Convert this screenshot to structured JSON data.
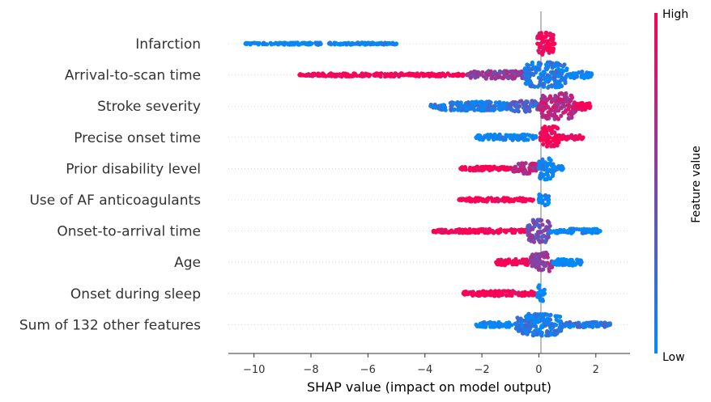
{
  "chart_data": {
    "type": "scatter",
    "subtype": "shap-beeswarm",
    "title": "",
    "xlabel": "SHAP value (impact on model output)",
    "xlim": [
      -10.9,
      3.2
    ],
    "xticks": [
      -10,
      -8,
      -6,
      -4,
      -2,
      0,
      2
    ],
    "xtick_labels": [
      "−10",
      "−8",
      "−6",
      "−4",
      "−2",
      "0",
      "2"
    ],
    "colors": {
      "low": "#008bfb",
      "high": "#ff0052",
      "zero_line": "#999999",
      "grid": "#cccccc"
    },
    "colorbar": {
      "title": "Feature value",
      "high_label": "High",
      "low_label": "Low"
    },
    "features": [
      {
        "name": "Infarction",
        "segments": [
          {
            "from": -10.3,
            "to": -5.0,
            "thickness": 0.08,
            "value": 0.0
          },
          {
            "from": -0.05,
            "to": 0.55,
            "thickness": 0.9,
            "value": 1.0
          }
        ]
      },
      {
        "name": "Arrival-to-scan time",
        "segments": [
          {
            "from": -8.4,
            "to": -2.5,
            "thickness": 0.12,
            "value": 1.0
          },
          {
            "from": -2.5,
            "to": -0.3,
            "thickness": 0.3,
            "value": 0.55
          },
          {
            "from": -0.5,
            "to": 1.0,
            "thickness": 1.0,
            "value": 0.1
          },
          {
            "from": 1.0,
            "to": 1.85,
            "thickness": 0.25,
            "value": 0.05
          }
        ]
      },
      {
        "name": "Stroke severity",
        "segments": [
          {
            "from": -3.8,
            "to": -1.0,
            "thickness": 0.35,
            "value": 0.1
          },
          {
            "from": -1.0,
            "to": 0.0,
            "thickness": 0.45,
            "value": 0.3
          },
          {
            "from": 0.0,
            "to": 1.3,
            "thickness": 1.0,
            "value": 0.72
          },
          {
            "from": 1.3,
            "to": 1.8,
            "thickness": 0.3,
            "value": 0.95
          }
        ]
      },
      {
        "name": "Precise onset time",
        "segments": [
          {
            "from": -2.2,
            "to": -0.1,
            "thickness": 0.22,
            "value": 0.0
          },
          {
            "from": 0.05,
            "to": 0.7,
            "thickness": 0.9,
            "value": 1.0
          },
          {
            "from": 0.7,
            "to": 1.55,
            "thickness": 0.18,
            "value": 1.0
          }
        ]
      },
      {
        "name": "Prior disability level",
        "segments": [
          {
            "from": -2.75,
            "to": -0.9,
            "thickness": 0.15,
            "value": 1.0
          },
          {
            "from": -0.9,
            "to": -0.05,
            "thickness": 0.45,
            "value": 0.7
          },
          {
            "from": 0.0,
            "to": 0.5,
            "thickness": 0.9,
            "value": 0.0
          },
          {
            "from": 0.5,
            "to": 0.85,
            "thickness": 0.2,
            "value": 0.0
          }
        ]
      },
      {
        "name": "Use of AF anticoagulants",
        "segments": [
          {
            "from": -2.8,
            "to": -0.2,
            "thickness": 0.15,
            "value": 1.0
          },
          {
            "from": 0.0,
            "to": 0.35,
            "thickness": 0.55,
            "value": 0.0
          }
        ]
      },
      {
        "name": "Onset-to-arrival time",
        "segments": [
          {
            "from": -3.7,
            "to": -0.4,
            "thickness": 0.15,
            "value": 1.0
          },
          {
            "from": -0.4,
            "to": 0.4,
            "thickness": 0.9,
            "value": 0.45
          },
          {
            "from": 0.4,
            "to": 2.15,
            "thickness": 0.18,
            "value": 0.0
          }
        ]
      },
      {
        "name": "Age",
        "segments": [
          {
            "from": -1.5,
            "to": -0.3,
            "thickness": 0.25,
            "value": 1.0
          },
          {
            "from": -0.3,
            "to": 0.5,
            "thickness": 0.75,
            "value": 0.6
          },
          {
            "from": 0.5,
            "to": 1.5,
            "thickness": 0.25,
            "value": 0.0
          }
        ]
      },
      {
        "name": "Onset during sleep",
        "segments": [
          {
            "from": -2.65,
            "to": -0.1,
            "thickness": 0.2,
            "value": 1.0
          },
          {
            "from": -0.05,
            "to": 0.2,
            "thickness": 0.65,
            "value": 0.0
          }
        ]
      },
      {
        "name": "Sum of 132 other features",
        "segments": [
          {
            "from": -2.2,
            "to": -0.8,
            "thickness": 0.2,
            "value": 0.0
          },
          {
            "from": -0.8,
            "to": 0.8,
            "thickness": 0.85,
            "value": 0.1
          },
          {
            "from": 0.8,
            "to": 2.5,
            "thickness": 0.2,
            "value": 0.15
          }
        ]
      }
    ]
  }
}
